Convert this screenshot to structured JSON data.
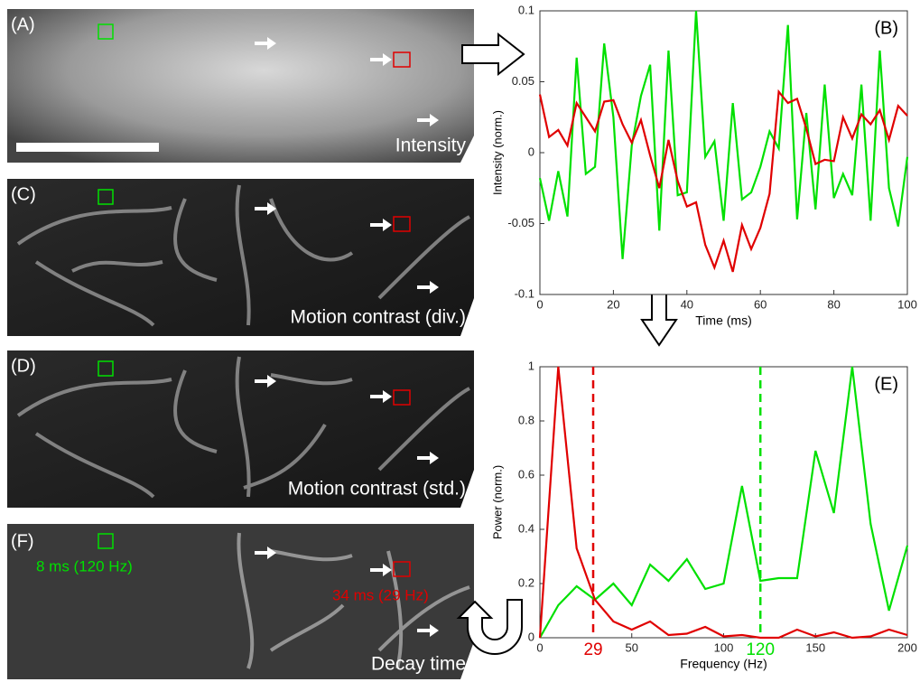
{
  "panels": [
    {
      "label": "(A)",
      "caption": "Intensity"
    },
    {
      "label": "(C)",
      "caption": "Motion contrast (div.)"
    },
    {
      "label": "(D)",
      "caption": "Motion contrast (std.)"
    },
    {
      "label": "(F)",
      "caption": "Decay time",
      "green_note": "8 ms (120 Hz)",
      "red_note": "34 ms (29 Hz)"
    }
  ],
  "chart_data": [
    {
      "type": "line",
      "annotation": "(B)",
      "x_label": "Time (ms)",
      "y_label": "Intensity (norm.)",
      "x": [
        0,
        2.5,
        5,
        7.5,
        10,
        12.5,
        15,
        17.5,
        20,
        22.5,
        25,
        27.5,
        30,
        32.5,
        35,
        37.5,
        40,
        42.5,
        45,
        47.5,
        50,
        52.5,
        55,
        57.5,
        60,
        62.5,
        65,
        67.5,
        70,
        72.5,
        75,
        77.5,
        80,
        82.5,
        85,
        87.5,
        90,
        92.5,
        95,
        97.5,
        100
      ],
      "series": [
        {
          "color": "#00e000",
          "values": [
            -0.018,
            -0.048,
            -0.013,
            -0.045,
            0.067,
            -0.015,
            -0.01,
            0.077,
            0.025,
            -0.075,
            0.005,
            0.04,
            0.062,
            -0.055,
            0.072,
            -0.03,
            -0.028,
            0.1,
            -0.003,
            0.008,
            -0.048,
            0.035,
            -0.033,
            -0.028,
            -0.01,
            0.015,
            0.003,
            0.09,
            -0.047,
            0.028,
            -0.04,
            0.048,
            -0.032,
            -0.015,
            -0.03,
            0.048,
            -0.048,
            0.072,
            -0.025,
            -0.052,
            -0.003
          ]
        },
        {
          "color": "#e00000",
          "values": [
            0.041,
            0.011,
            0.016,
            0.005,
            0.035,
            0.025,
            0.015,
            0.036,
            0.037,
            0.02,
            0.007,
            0.023,
            -0.002,
            -0.025,
            0.009,
            -0.02,
            -0.038,
            -0.035,
            -0.065,
            -0.081,
            -0.062,
            -0.084,
            -0.051,
            -0.068,
            -0.053,
            -0.029,
            0.043,
            0.035,
            0.038,
            0.017,
            -0.008,
            -0.005,
            -0.006,
            0.025,
            0.01,
            0.027,
            0.02,
            0.03,
            0.009,
            0.033,
            0.026
          ]
        }
      ],
      "xlim": [
        0,
        100
      ],
      "xticks": [
        0,
        20,
        40,
        60,
        80,
        100
      ],
      "ylim": [
        -0.1,
        0.1
      ],
      "yticks": [
        -0.1,
        -0.05,
        0,
        0.05,
        0.1
      ]
    },
    {
      "type": "line",
      "annotation": "(E)",
      "x_label": "Frequency (Hz)",
      "y_label": "Power (norm.)",
      "x": [
        0,
        10,
        20,
        30,
        40,
        50,
        60,
        70,
        80,
        90,
        100,
        110,
        120,
        130,
        140,
        150,
        160,
        170,
        180,
        190,
        200
      ],
      "series": [
        {
          "color": "#00e000",
          "values": [
            0,
            0.12,
            0.19,
            0.14,
            0.2,
            0.12,
            0.27,
            0.21,
            0.29,
            0.18,
            0.2,
            0.56,
            0.21,
            0.22,
            0.22,
            0.69,
            0.46,
            1.0,
            0.42,
            0.1,
            0.34
          ]
        },
        {
          "color": "#e00000",
          "values": [
            0,
            1.0,
            0.33,
            0.14,
            0.06,
            0.03,
            0.06,
            0.01,
            0.015,
            0.04,
            0.005,
            0.01,
            0,
            0,
            0.03,
            0.005,
            0.02,
            0,
            0.005,
            0.03,
            0.01
          ]
        }
      ],
      "vlines": [
        {
          "x": 29,
          "color": "#e00000"
        },
        {
          "x": 120,
          "color": "#00e000"
        }
      ],
      "xlim": [
        0,
        200
      ],
      "xticks": [
        0,
        50,
        100,
        150,
        200
      ],
      "ylim": [
        0,
        1
      ],
      "yticks": [
        0,
        0.2,
        0.4,
        0.6,
        0.8,
        1
      ]
    }
  ]
}
